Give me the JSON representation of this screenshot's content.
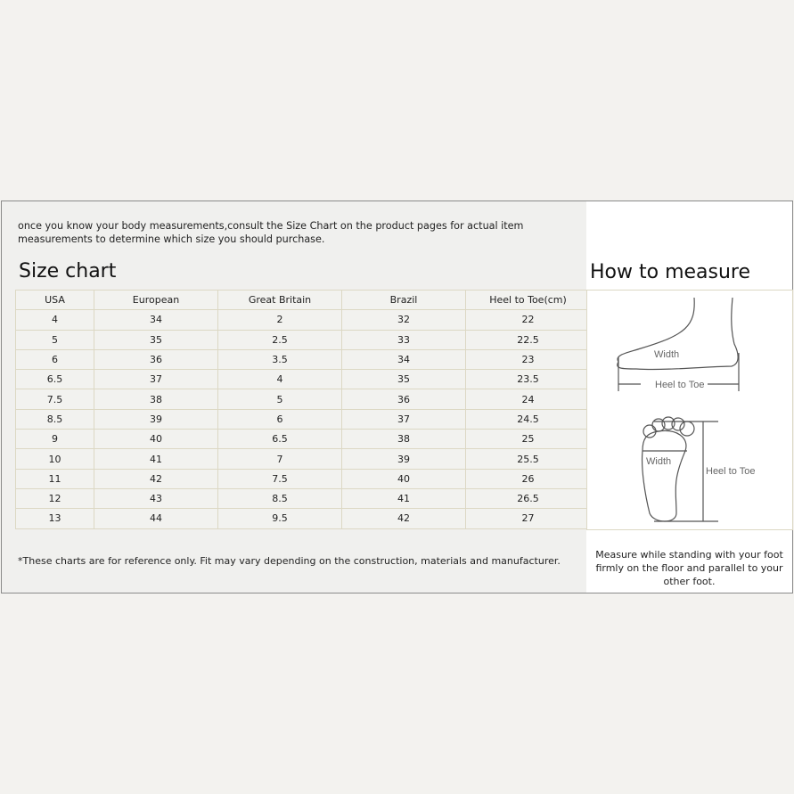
{
  "intro": "once you know your body measurements,consult the Size Chart on the product pages for actual item measurements to determine which size you should purchase.",
  "size_chart_title": "Size chart",
  "measure_title": "How to measure",
  "table": {
    "headers": [
      "USA",
      "European",
      "Great Britain",
      "Brazil",
      "Heel to Toe(cm)"
    ],
    "rows": [
      [
        "4",
        "34",
        "2",
        "32",
        "22"
      ],
      [
        "5",
        "35",
        "2.5",
        "33",
        "22.5"
      ],
      [
        "6",
        "36",
        "3.5",
        "34",
        "23"
      ],
      [
        "6.5",
        "37",
        "4",
        "35",
        "23.5"
      ],
      [
        "7.5",
        "38",
        "5",
        "36",
        "24"
      ],
      [
        "8.5",
        "39",
        "6",
        "37",
        "24.5"
      ],
      [
        "9",
        "40",
        "6.5",
        "38",
        "25"
      ],
      [
        "10",
        "41",
        "7",
        "39",
        "25.5"
      ],
      [
        "11",
        "42",
        "7.5",
        "40",
        "26"
      ],
      [
        "12",
        "43",
        "8.5",
        "41",
        "26.5"
      ],
      [
        "13",
        "44",
        "9.5",
        "42",
        "27"
      ]
    ]
  },
  "diagram": {
    "width_label": "Width",
    "heel_to_toe_label": "Heel to Toe"
  },
  "footnote": "*These charts are for reference only. Fit may vary depending on the construction, materials and manufacturer.",
  "measure_note": "Measure while standing with your foot firmly on the floor and parallel to your other foot."
}
